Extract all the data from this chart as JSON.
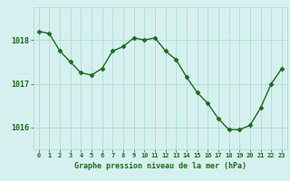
{
  "x": [
    0,
    1,
    2,
    3,
    4,
    5,
    6,
    7,
    8,
    9,
    10,
    11,
    12,
    13,
    14,
    15,
    16,
    17,
    18,
    19,
    20,
    21,
    22,
    23
  ],
  "y": [
    1018.2,
    1018.15,
    1017.75,
    1017.5,
    1017.25,
    1017.2,
    1017.35,
    1017.75,
    1017.85,
    1018.05,
    1018.0,
    1018.05,
    1017.75,
    1017.55,
    1017.15,
    1016.8,
    1016.55,
    1016.2,
    1015.95,
    1015.95,
    1016.05,
    1016.45,
    1017.0,
    1017.35
  ],
  "line_color": "#1a6b1a",
  "marker_color": "#1a6b1a",
  "bg_color": "#d6f0f0",
  "grid_color": "#aaddcc",
  "title": "Graphe pression niveau de la mer (hPa)",
  "ylim_min": 1015.5,
  "ylim_max": 1018.75,
  "yticks": [
    1016,
    1017,
    1018
  ],
  "tick_color": "#1a6b1a",
  "title_color": "#1a6b1a"
}
